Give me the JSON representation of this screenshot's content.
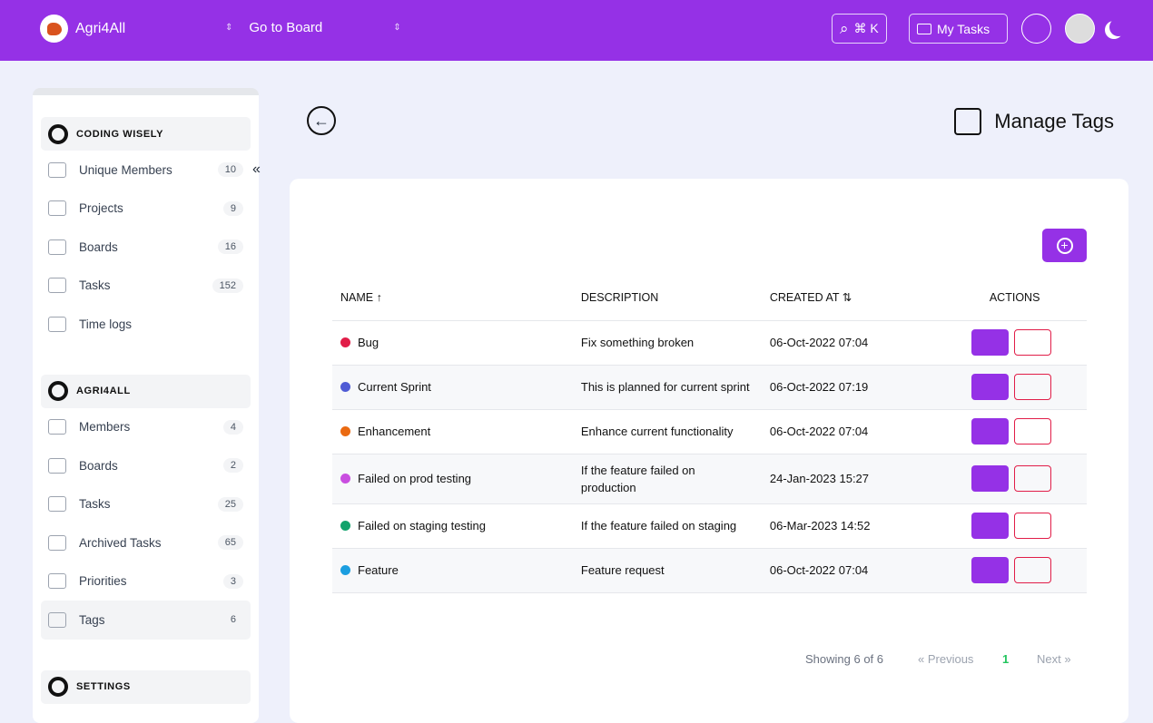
{
  "header": {
    "brand": "Agri4All",
    "board_select": "Go to Board",
    "search_shortcut": "⌘ K",
    "my_tasks": "My Tasks"
  },
  "sidebar": {
    "sections": [
      {
        "title": "CODING WISELY",
        "items": [
          {
            "label": "Unique Members",
            "count": 10
          },
          {
            "label": "Projects",
            "count": 9
          },
          {
            "label": "Boards",
            "count": 16
          },
          {
            "label": "Tasks",
            "count": 152
          },
          {
            "label": "Time logs"
          }
        ]
      },
      {
        "title": "AGRI4ALL",
        "items": [
          {
            "label": "Members",
            "count": 4
          },
          {
            "label": "Boards",
            "count": 2
          },
          {
            "label": "Tasks",
            "count": 25
          },
          {
            "label": "Archived Tasks",
            "count": 65
          },
          {
            "label": "Priorities",
            "count": 3
          },
          {
            "label": "Tags",
            "count": 6,
            "active": true
          }
        ]
      },
      {
        "title": "SETTINGS",
        "items": []
      }
    ]
  },
  "page": {
    "title": "Manage Tags"
  },
  "table": {
    "columns": [
      "NAME",
      "DESCRIPTION",
      "CREATED AT",
      "ACTIONS"
    ],
    "rows": [
      {
        "name": "Bug",
        "color": "#e11d48",
        "description": "Fix something broken",
        "created_at": "06-Oct-2022 07:04"
      },
      {
        "name": "Current Sprint",
        "color": "#4f5bd5",
        "description": "This is planned for current sprint",
        "created_at": "06-Oct-2022 07:19"
      },
      {
        "name": "Enhancement",
        "color": "#ea6a12",
        "description": "Enhance current functionality",
        "created_at": "06-Oct-2022 07:04"
      },
      {
        "name": "Failed on prod testing",
        "color": "#c94ee0",
        "description": "If the feature failed on production",
        "created_at": "24-Jan-2023 15:27"
      },
      {
        "name": "Failed on staging testing",
        "color": "#12a36c",
        "description": "If the feature failed on staging",
        "created_at": "06-Mar-2023 14:52"
      },
      {
        "name": "Feature",
        "color": "#1b9ee0",
        "description": "Feature request",
        "created_at": "06-Oct-2022 07:04"
      }
    ]
  },
  "pagination": {
    "showing": "Showing 6 of 6",
    "previous": "« Previous",
    "page": "1",
    "next": "Next »"
  }
}
